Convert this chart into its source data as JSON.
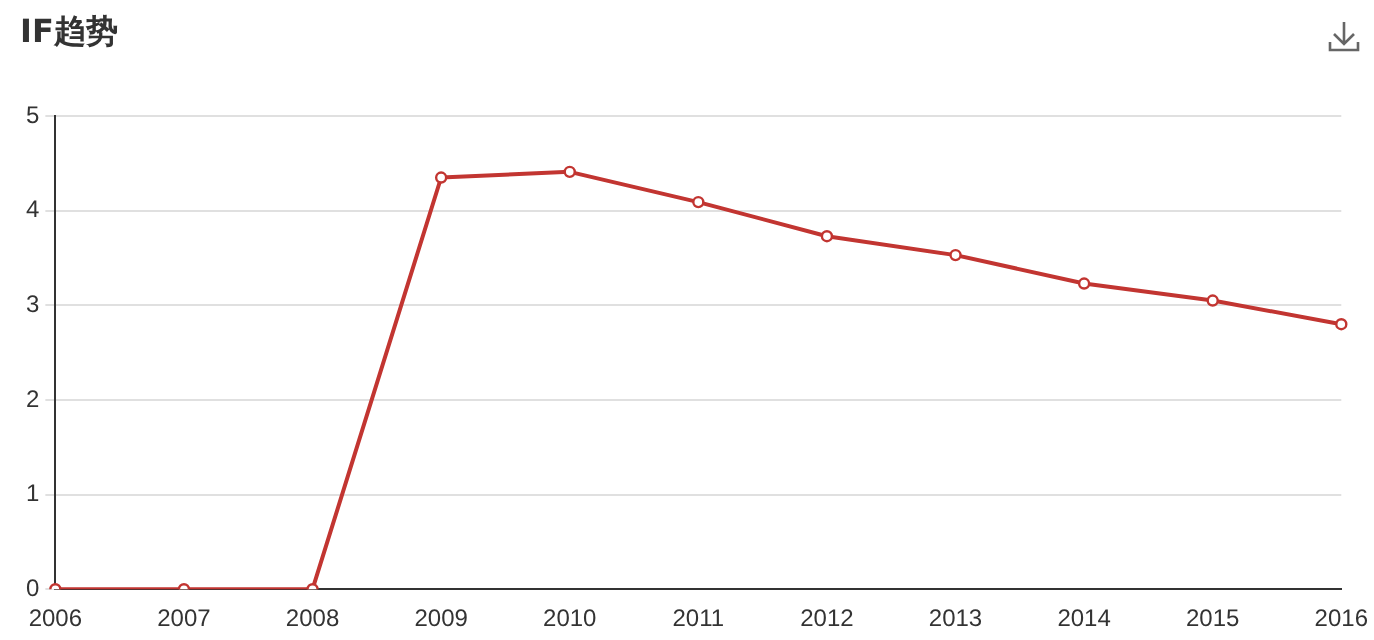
{
  "chart_data": {
    "type": "line",
    "title": "IF趋势",
    "categories": [
      "2006",
      "2007",
      "2008",
      "2009",
      "2010",
      "2011",
      "2012",
      "2013",
      "2014",
      "2015",
      "2016"
    ],
    "series": [
      {
        "color": "#c23531",
        "values": [
          0,
          0,
          0,
          4.35,
          4.41,
          4.09,
          3.73,
          3.53,
          3.23,
          3.05,
          2.8
        ]
      }
    ],
    "ylim": [
      0,
      5
    ],
    "yticks": [
      0,
      1,
      2,
      3,
      4,
      5
    ],
    "grid": "y",
    "marker": "circle",
    "line_style": "solid"
  }
}
